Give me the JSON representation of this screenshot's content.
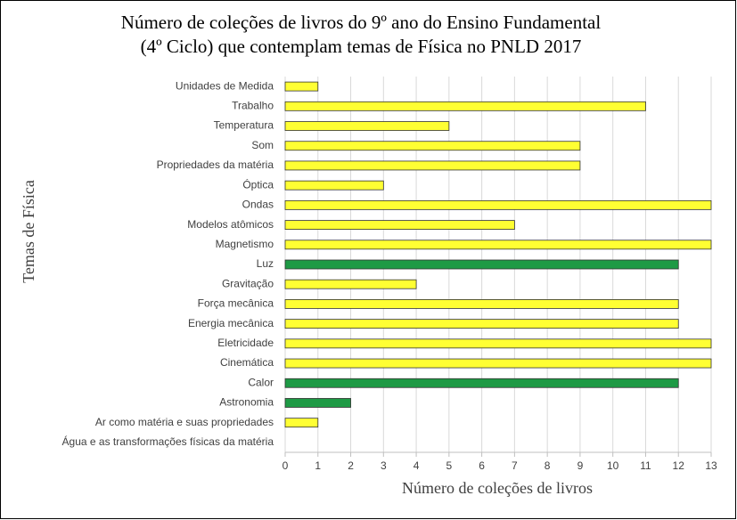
{
  "chart_data": {
    "type": "hbar",
    "title": [
      "Número de coleções de livros do 9º ano do Ensino Fundamental",
      "(4º Ciclo)  que contemplam temas de Física no PNLD 2017"
    ],
    "x_label": "Número de coleções de livros",
    "y_label": "Temas de Física",
    "categories": [
      "Unidades de Medida",
      "Trabalho",
      "Temperatura",
      "Som",
      "Propriedades da matéria",
      "Óptica",
      "Ondas",
      "Modelos atômicos",
      "Magnetismo",
      "Luz",
      "Gravitação",
      "Força mecânica",
      "Energia mecânica",
      "Eletricidade",
      "Cinemática",
      "Calor",
      "Astronomia",
      "Ar como matéria e suas propriedades",
      "Água e as transformações físicas da matéria"
    ],
    "values": [
      1,
      11,
      5,
      9,
      9,
      3,
      13,
      7,
      13,
      12,
      4,
      12,
      12,
      13,
      13,
      12,
      2,
      1,
      0
    ],
    "colors": [
      "#ffff33",
      "#ffff33",
      "#ffff33",
      "#ffff33",
      "#ffff33",
      "#ffff33",
      "#ffff33",
      "#ffff33",
      "#ffff33",
      "#1e9a45",
      "#ffff33",
      "#ffff33",
      "#ffff33",
      "#ffff33",
      "#ffff33",
      "#1e9a45",
      "#1e9a45",
      "#ffff33",
      "#1e9a45"
    ],
    "xlim": [
      0,
      13
    ],
    "xticks": [
      0,
      1,
      2,
      3,
      4,
      5,
      6,
      7,
      8,
      9,
      10,
      11,
      12,
      13
    ],
    "grid": true
  }
}
